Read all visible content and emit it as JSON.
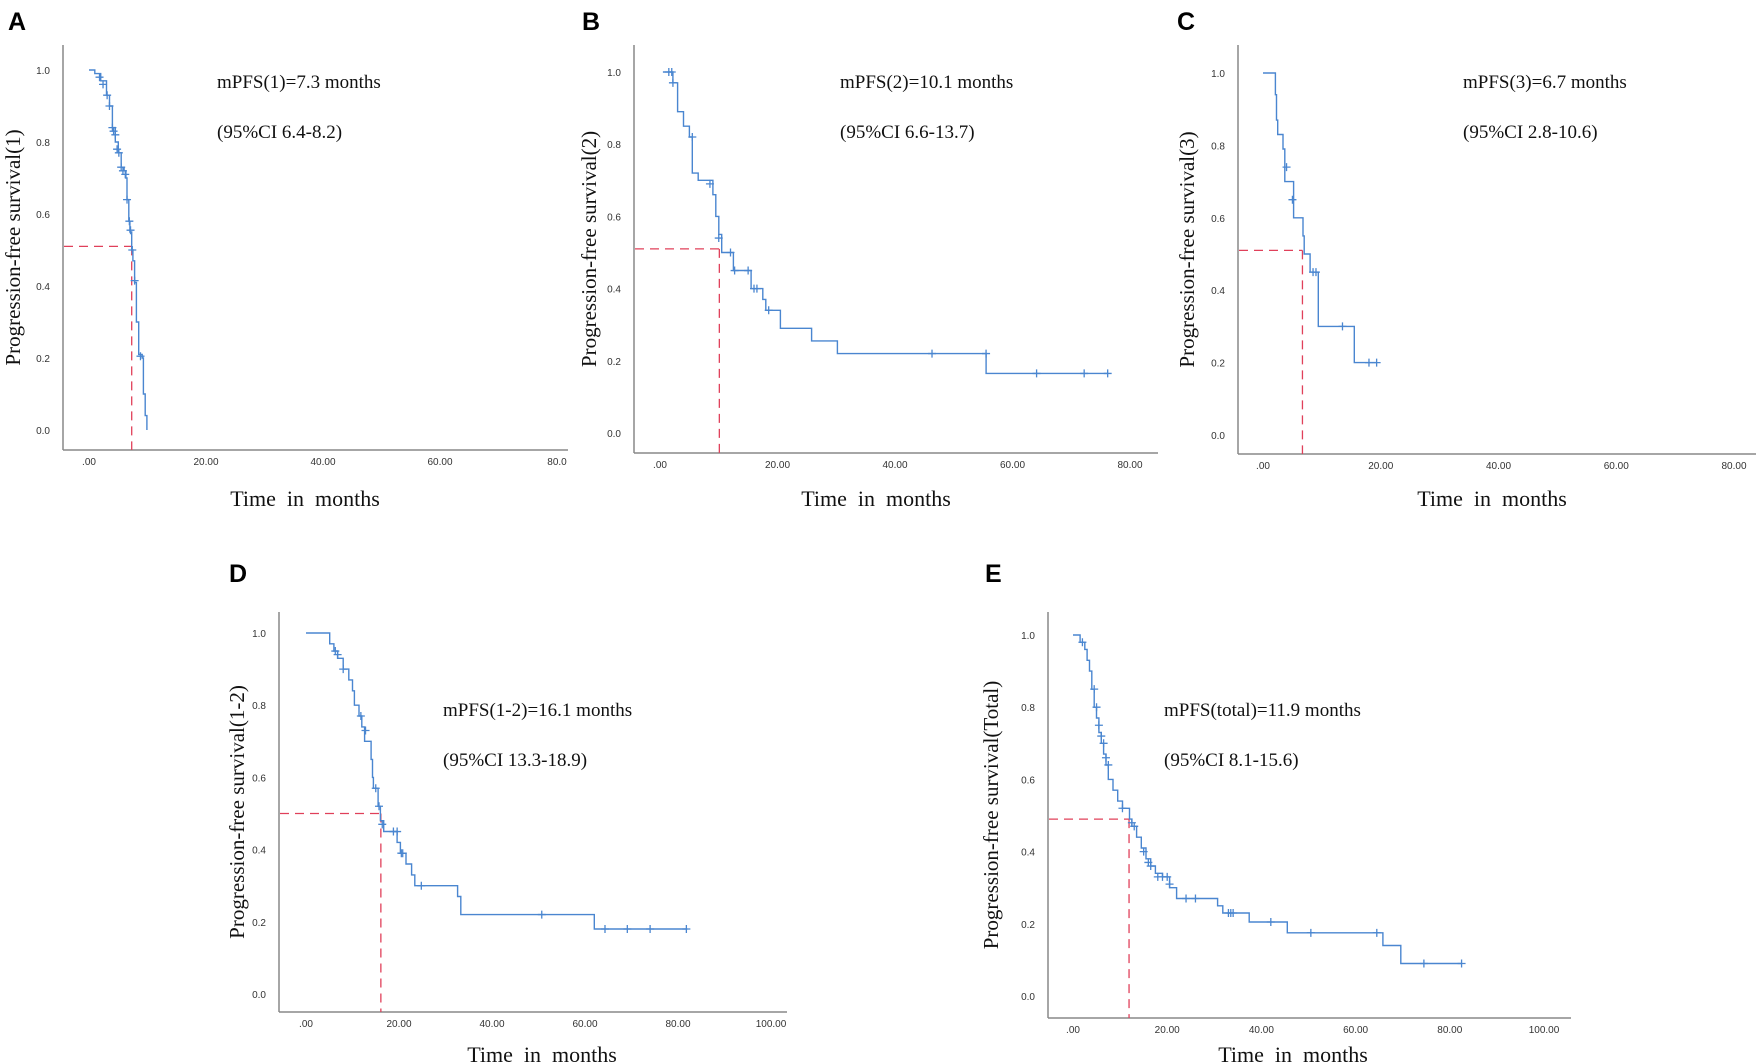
{
  "colors": {
    "curve": "#4a86d0",
    "median": "#e0405a",
    "axis": "#888888"
  },
  "chart_data": [
    {
      "type": "line",
      "panel": "A",
      "title": "",
      "ylabel": "Progression-free survival(1)",
      "xlabel": "Time  in  months",
      "annotation": [
        "mPFS(1)=7.3 months",
        "(95%CI 6.4-8.2)"
      ],
      "xlim": [
        0,
        80
      ],
      "ylim": [
        0,
        1
      ],
      "xticks": [
        ".00",
        "20.00",
        "40.00",
        "60.00",
        "80.0"
      ],
      "yticks": [
        "0.0",
        "0.2",
        "0.4",
        "0.6",
        "0.8",
        "1.0"
      ],
      "median_time": 7.3,
      "median_survival": 0.51,
      "steps": [
        [
          0,
          1
        ],
        [
          1,
          0.99
        ],
        [
          2,
          0.97
        ],
        [
          3,
          0.93
        ],
        [
          3.5,
          0.9
        ],
        [
          4,
          0.84
        ],
        [
          4.5,
          0.8
        ],
        [
          5,
          0.77
        ],
        [
          5.5,
          0.73
        ],
        [
          6,
          0.72
        ],
        [
          6.3,
          0.7
        ],
        [
          6.5,
          0.64
        ],
        [
          6.8,
          0.58
        ],
        [
          7,
          0.55
        ],
        [
          7.3,
          0.5
        ],
        [
          7.5,
          0.47
        ],
        [
          7.8,
          0.41
        ],
        [
          8.1,
          0.3
        ],
        [
          8.5,
          0.21
        ],
        [
          9.1,
          0.2
        ],
        [
          9.3,
          0.1
        ],
        [
          9.6,
          0.04
        ],
        [
          9.9,
          0
        ]
      ],
      "censored": [
        [
          1.8,
          0.98
        ],
        [
          2.4,
          0.96
        ],
        [
          3.1,
          0.93
        ],
        [
          3.5,
          0.9
        ],
        [
          4,
          0.84
        ],
        [
          4.2,
          0.83
        ],
        [
          4.5,
          0.82
        ],
        [
          4.8,
          0.78
        ],
        [
          5.1,
          0.77
        ],
        [
          5.5,
          0.73
        ],
        [
          5.8,
          0.72
        ],
        [
          6.2,
          0.71
        ],
        [
          6.5,
          0.64
        ],
        [
          6.9,
          0.58
        ],
        [
          7.1,
          0.555
        ],
        [
          7.4,
          0.5
        ],
        [
          7.8,
          0.415
        ],
        [
          8.8,
          0.205
        ]
      ]
    },
    {
      "type": "line",
      "panel": "B",
      "title": "",
      "ylabel": "Progression-free survival(2)",
      "xlabel": "Time  in  months",
      "annotation": [
        "mPFS(2)=10.1 months",
        "(95%CI 6.6-13.7)"
      ],
      "xlim": [
        0,
        80
      ],
      "ylim": [
        0,
        1
      ],
      "xticks": [
        ".00",
        "20.00",
        "40.00",
        "60.00",
        "80.00"
      ],
      "yticks": [
        "0.0",
        "0.2",
        "0.4",
        "0.6",
        "0.8",
        "1.0"
      ],
      "median_time": 10.1,
      "median_survival": 0.51,
      "steps": [
        [
          0.5,
          1
        ],
        [
          2.2,
          0.97
        ],
        [
          3,
          0.89
        ],
        [
          4,
          0.85
        ],
        [
          5,
          0.82
        ],
        [
          5.5,
          0.72
        ],
        [
          6.5,
          0.7
        ],
        [
          9,
          0.66
        ],
        [
          9.5,
          0.6
        ],
        [
          10,
          0.55
        ],
        [
          10.5,
          0.5
        ],
        [
          12.5,
          0.45
        ],
        [
          15.5,
          0.4
        ],
        [
          17.5,
          0.37
        ],
        [
          18,
          0.34
        ],
        [
          20.5,
          0.29
        ],
        [
          25.8,
          0.255
        ],
        [
          30.2,
          0.22
        ],
        [
          55.5,
          0.165
        ],
        [
          76.2,
          0.165
        ]
      ],
      "censored": [
        [
          1.5,
          1
        ],
        [
          2,
          1
        ],
        [
          2.2,
          0.97
        ],
        [
          5.5,
          0.82
        ],
        [
          8.5,
          0.69
        ],
        [
          10,
          0.54
        ],
        [
          12,
          0.5
        ],
        [
          12.7,
          0.45
        ],
        [
          15,
          0.45
        ],
        [
          16,
          0.4
        ],
        [
          16.5,
          0.4
        ],
        [
          18.5,
          0.34
        ],
        [
          46.3,
          0.22
        ],
        [
          55.5,
          0.22
        ],
        [
          64.1,
          0.165
        ],
        [
          72.2,
          0.165
        ],
        [
          76.2,
          0.165
        ]
      ]
    },
    {
      "type": "line",
      "panel": "C",
      "title": "",
      "ylabel": "Progression-free survival(3)",
      "xlabel": "Time  in  months",
      "annotation": [
        "mPFS(3)=6.7 months",
        "(95%CI 2.8-10.6)"
      ],
      "xlim": [
        0,
        80
      ],
      "ylim": [
        0,
        1
      ],
      "xticks": [
        ".00",
        "20.00",
        "40.00",
        "60.00",
        "80.00"
      ],
      "yticks": [
        "0.0",
        "0.2",
        "0.4",
        "0.6",
        "0.8",
        "1.0"
      ],
      "median_time": 6.7,
      "median_survival": 0.51,
      "steps": [
        [
          0,
          1
        ],
        [
          2.1,
          0.94
        ],
        [
          2.3,
          0.87
        ],
        [
          2.5,
          0.83
        ],
        [
          3.4,
          0.79
        ],
        [
          3.7,
          0.7
        ],
        [
          5.2,
          0.6
        ],
        [
          6.8,
          0.55
        ],
        [
          7,
          0.5
        ],
        [
          8,
          0.45
        ],
        [
          9.4,
          0.3
        ],
        [
          15.5,
          0.2
        ],
        [
          19.3,
          0.2
        ]
      ],
      "censored": [
        [
          4,
          0.74
        ],
        [
          5,
          0.65
        ],
        [
          8.5,
          0.45
        ],
        [
          9,
          0.45
        ],
        [
          13.5,
          0.3
        ],
        [
          18,
          0.2
        ],
        [
          19.3,
          0.2
        ]
      ]
    },
    {
      "type": "line",
      "panel": "D",
      "title": "",
      "ylabel": "Progression-free survival(1-2)",
      "xlabel": "Time  in  months",
      "annotation": [
        "mPFS(1-2)=16.1 months",
        "(95%CI 13.3-18.9)"
      ],
      "xlim": [
        0,
        100
      ],
      "ylim": [
        0,
        1
      ],
      "xticks": [
        ".00",
        "20.00",
        "40.00",
        "60.00",
        "80.00",
        "100.00"
      ],
      "yticks": [
        "0.0",
        "0.2",
        "0.4",
        "0.6",
        "0.8",
        "1.0"
      ],
      "median_time": 16.1,
      "median_survival": 0.5,
      "steps": [
        [
          0,
          1
        ],
        [
          5.1,
          0.97
        ],
        [
          6,
          0.95
        ],
        [
          6.8,
          0.93
        ],
        [
          8,
          0.9
        ],
        [
          9.2,
          0.87
        ],
        [
          10,
          0.84
        ],
        [
          10.4,
          0.8
        ],
        [
          11.4,
          0.77
        ],
        [
          12,
          0.74
        ],
        [
          12.6,
          0.7
        ],
        [
          14,
          0.65
        ],
        [
          14.3,
          0.6
        ],
        [
          14.5,
          0.57
        ],
        [
          15.5,
          0.52
        ],
        [
          16,
          0.48
        ],
        [
          16.7,
          0.45
        ],
        [
          19.6,
          0.42
        ],
        [
          20.3,
          0.39
        ],
        [
          21.5,
          0.36
        ],
        [
          22.7,
          0.33
        ],
        [
          23.4,
          0.3
        ],
        [
          32.6,
          0.27
        ],
        [
          33.3,
          0.22
        ],
        [
          62,
          0.18
        ],
        [
          82,
          0.18
        ]
      ],
      "censored": [
        [
          6.3,
          0.95
        ],
        [
          6.8,
          0.94
        ],
        [
          8,
          0.9
        ],
        [
          11.8,
          0.77
        ],
        [
          12.8,
          0.73
        ],
        [
          15,
          0.57
        ],
        [
          15.7,
          0.52
        ],
        [
          16.4,
          0.47
        ],
        [
          18.8,
          0.45
        ],
        [
          19.6,
          0.45
        ],
        [
          20.5,
          0.39
        ],
        [
          20.8,
          0.39
        ],
        [
          24.8,
          0.3
        ],
        [
          50.7,
          0.22
        ],
        [
          64.3,
          0.18
        ],
        [
          69.1,
          0.18
        ],
        [
          74,
          0.18
        ],
        [
          81.8,
          0.18
        ]
      ]
    },
    {
      "type": "line",
      "panel": "E",
      "title": "",
      "ylabel": "Progression-free survival(Total)",
      "xlabel": "Time  in  months",
      "annotation": [
        "mPFS(total)=11.9 months",
        "(95%CI 8.1-15.6)"
      ],
      "xlim": [
        0,
        100
      ],
      "ylim": [
        0,
        1
      ],
      "xticks": [
        ".00",
        "20.00",
        "40.00",
        "60.00",
        "80.00",
        "100.00"
      ],
      "yticks": [
        "0.0",
        "0.2",
        "0.4",
        "0.6",
        "0.8",
        "1.0"
      ],
      "median_time": 11.9,
      "median_survival": 0.49,
      "steps": [
        [
          0,
          1
        ],
        [
          1.5,
          0.98
        ],
        [
          2.5,
          0.96
        ],
        [
          3,
          0.93
        ],
        [
          3.5,
          0.9
        ],
        [
          4,
          0.85
        ],
        [
          4.5,
          0.8
        ],
        [
          5,
          0.77
        ],
        [
          5.5,
          0.73
        ],
        [
          6,
          0.7
        ],
        [
          6.5,
          0.67
        ],
        [
          7,
          0.64
        ],
        [
          7.5,
          0.6
        ],
        [
          8.5,
          0.57
        ],
        [
          9.5,
          0.54
        ],
        [
          10.5,
          0.52
        ],
        [
          12,
          0.49
        ],
        [
          12.5,
          0.47
        ],
        [
          13.5,
          0.44
        ],
        [
          14.5,
          0.41
        ],
        [
          15.5,
          0.38
        ],
        [
          16.5,
          0.36
        ],
        [
          17.5,
          0.34
        ],
        [
          19,
          0.33
        ],
        [
          20.5,
          0.3
        ],
        [
          22,
          0.27
        ],
        [
          30.7,
          0.25
        ],
        [
          31.8,
          0.23
        ],
        [
          37.4,
          0.205
        ],
        [
          45.5,
          0.175
        ],
        [
          65.8,
          0.14
        ],
        [
          69.6,
          0.09
        ],
        [
          82.6,
          0.09
        ]
      ],
      "censored": [
        [
          2,
          0.98
        ],
        [
          4.5,
          0.85
        ],
        [
          5,
          0.8
        ],
        [
          5.5,
          0.75
        ],
        [
          6,
          0.72
        ],
        [
          6.5,
          0.7
        ],
        [
          7,
          0.66
        ],
        [
          7.5,
          0.64
        ],
        [
          10.5,
          0.52
        ],
        [
          12.5,
          0.48
        ],
        [
          13,
          0.47
        ],
        [
          15,
          0.4
        ],
        [
          16,
          0.37
        ],
        [
          16.5,
          0.36
        ],
        [
          18,
          0.33
        ],
        [
          19,
          0.33
        ],
        [
          20,
          0.33
        ],
        [
          20.5,
          0.31
        ],
        [
          24,
          0.27
        ],
        [
          26,
          0.27
        ],
        [
          33,
          0.23
        ],
        [
          33.5,
          0.23
        ],
        [
          34,
          0.23
        ],
        [
          42,
          0.205
        ],
        [
          50.5,
          0.175
        ],
        [
          64.5,
          0.175
        ],
        [
          74.5,
          0.09
        ],
        [
          82.5,
          0.09
        ]
      ]
    }
  ]
}
